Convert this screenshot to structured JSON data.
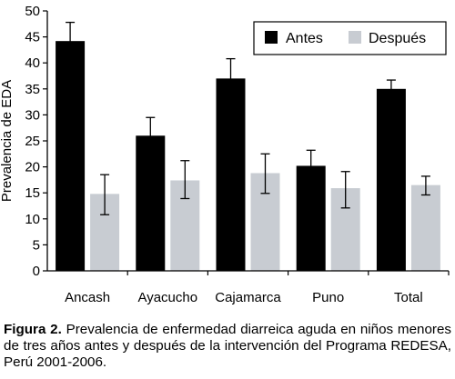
{
  "chart_data": {
    "type": "bar",
    "categories": [
      "Ancash",
      "Ayacucho",
      "Cajamarca",
      "Puno",
      "Total"
    ],
    "series": [
      {
        "name": "Antes",
        "color": "#000000",
        "values": [
          44.2,
          26.0,
          37.0,
          20.2,
          35.0
        ],
        "err_low": [
          40.5,
          22.7,
          33.3,
          17.4,
          33.6
        ],
        "err_high": [
          47.8,
          29.5,
          40.8,
          23.2,
          36.7
        ]
      },
      {
        "name": "Después",
        "color": "#c8ccd2",
        "values": [
          14.8,
          17.4,
          18.8,
          15.9,
          16.5
        ],
        "err_low": [
          10.8,
          13.9,
          14.9,
          12.1,
          14.6
        ],
        "err_high": [
          18.5,
          21.2,
          22.5,
          19.1,
          18.2
        ]
      }
    ],
    "title": "",
    "xlabel": "",
    "ylabel": "Prevalencia de EDA",
    "ylim": [
      0,
      50
    ],
    "yticks": [
      0,
      5,
      10,
      15,
      20,
      25,
      30,
      35,
      40,
      45,
      50
    ],
    "legend_position": "top-right",
    "grid": false
  },
  "caption": {
    "label": "Figura 2.",
    "text": " Prevalencia de enfermedad diarreica aguda en niños menores de tres años antes y después de la intervención del Programa REDESA, Perú 2001-2006."
  }
}
